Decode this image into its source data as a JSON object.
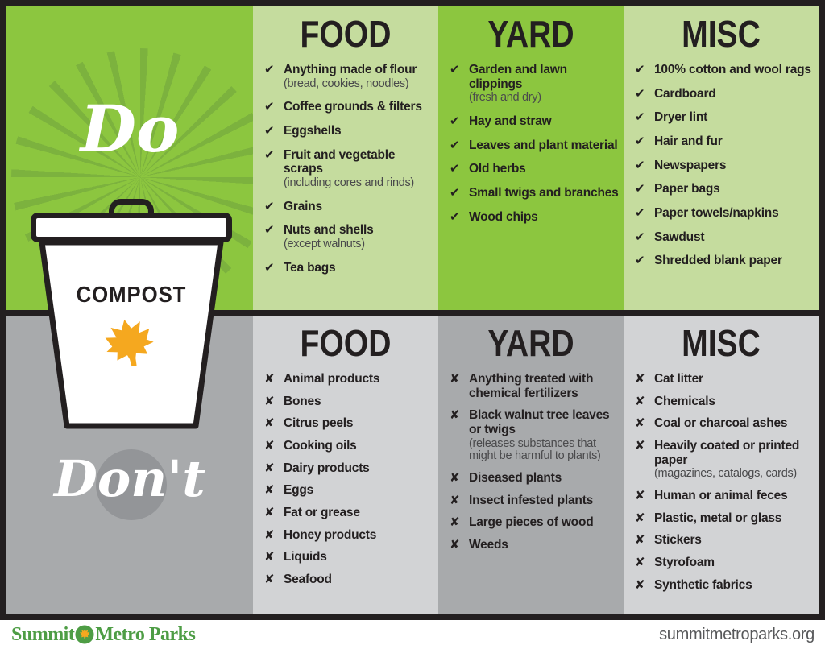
{
  "poster": {
    "do_label": "Do",
    "dont_label": "Don't",
    "bin_label": "COMPOST",
    "sections": {
      "do": {
        "marker": "✔",
        "columns": [
          {
            "header": "FOOD",
            "items": [
              {
                "text": "Anything made of flour",
                "note": "(bread, cookies, noodles)"
              },
              {
                "text": "Coffee grounds & filters"
              },
              {
                "text": "Eggshells"
              },
              {
                "text": "Fruit and vegetable scraps",
                "note": "(including cores and rinds)"
              },
              {
                "text": "Grains"
              },
              {
                "text": "Nuts and shells",
                "note": "(except walnuts)"
              },
              {
                "text": "Tea bags"
              }
            ]
          },
          {
            "header": "YARD",
            "items": [
              {
                "text": "Garden and lawn clippings",
                "note": "(fresh and dry)"
              },
              {
                "text": "Hay and straw"
              },
              {
                "text": "Leaves and plant material"
              },
              {
                "text": "Old herbs"
              },
              {
                "text": "Small twigs and branches"
              },
              {
                "text": "Wood chips"
              }
            ]
          },
          {
            "header": "MISC",
            "items": [
              {
                "text": "100% cotton and wool rags"
              },
              {
                "text": "Cardboard"
              },
              {
                "text": "Dryer lint"
              },
              {
                "text": "Hair and fur"
              },
              {
                "text": "Newspapers"
              },
              {
                "text": "Paper bags"
              },
              {
                "text": "Paper towels/napkins"
              },
              {
                "text": "Sawdust"
              },
              {
                "text": "Shredded blank paper"
              }
            ]
          }
        ]
      },
      "dont": {
        "marker": "✘",
        "columns": [
          {
            "header": "FOOD",
            "items": [
              {
                "text": "Animal products"
              },
              {
                "text": "Bones"
              },
              {
                "text": "Citrus peels"
              },
              {
                "text": "Cooking oils"
              },
              {
                "text": "Dairy products"
              },
              {
                "text": "Eggs"
              },
              {
                "text": "Fat or grease"
              },
              {
                "text": "Honey products"
              },
              {
                "text": "Liquids"
              },
              {
                "text": "Seafood"
              }
            ]
          },
          {
            "header": "YARD",
            "items": [
              {
                "text": "Anything treated with chemical fertilizers"
              },
              {
                "text": "Black walnut tree leaves or twigs",
                "note": "(releases substances that might be harmful to plants)"
              },
              {
                "text": "Diseased plants"
              },
              {
                "text": "Insect infested plants"
              },
              {
                "text": "Large pieces of wood"
              },
              {
                "text": "Weeds"
              }
            ]
          },
          {
            "header": "MISC",
            "items": [
              {
                "text": "Cat litter"
              },
              {
                "text": "Chemicals"
              },
              {
                "text": "Coal or charcoal ashes"
              },
              {
                "text": "Heavily coated or printed paper",
                "note": "(magazines, catalogs, cards)"
              },
              {
                "text": "Human or animal feces"
              },
              {
                "text": "Plastic, metal or glass"
              },
              {
                "text": "Stickers"
              },
              {
                "text": "Styrofoam"
              },
              {
                "text": "Synthetic fabrics"
              }
            ]
          }
        ]
      }
    }
  },
  "footer": {
    "brand_part1": "Summit",
    "brand_part2": "Metro Parks",
    "website": "summitmetroparks.org"
  },
  "icons": {
    "check": "✔",
    "x": "✘",
    "bin_leaf": "maple-leaf",
    "logo_leaf": "maple-leaf-in-circle"
  },
  "colors": {
    "frame_dark": "#231f20",
    "text_dark": "#231f20",
    "bright_green": "#8cc63f",
    "light_green": "#c5dc9e",
    "ray_green": "#7cb23e",
    "mid_gray": "#a8aaac",
    "light_gray": "#d2d3d5",
    "circle_gray": "#939598",
    "leaf_orange": "#f5a81f",
    "logo_green": "#4e9d45",
    "note_gray": "#4a4a4c",
    "url_gray": "#57585a"
  }
}
